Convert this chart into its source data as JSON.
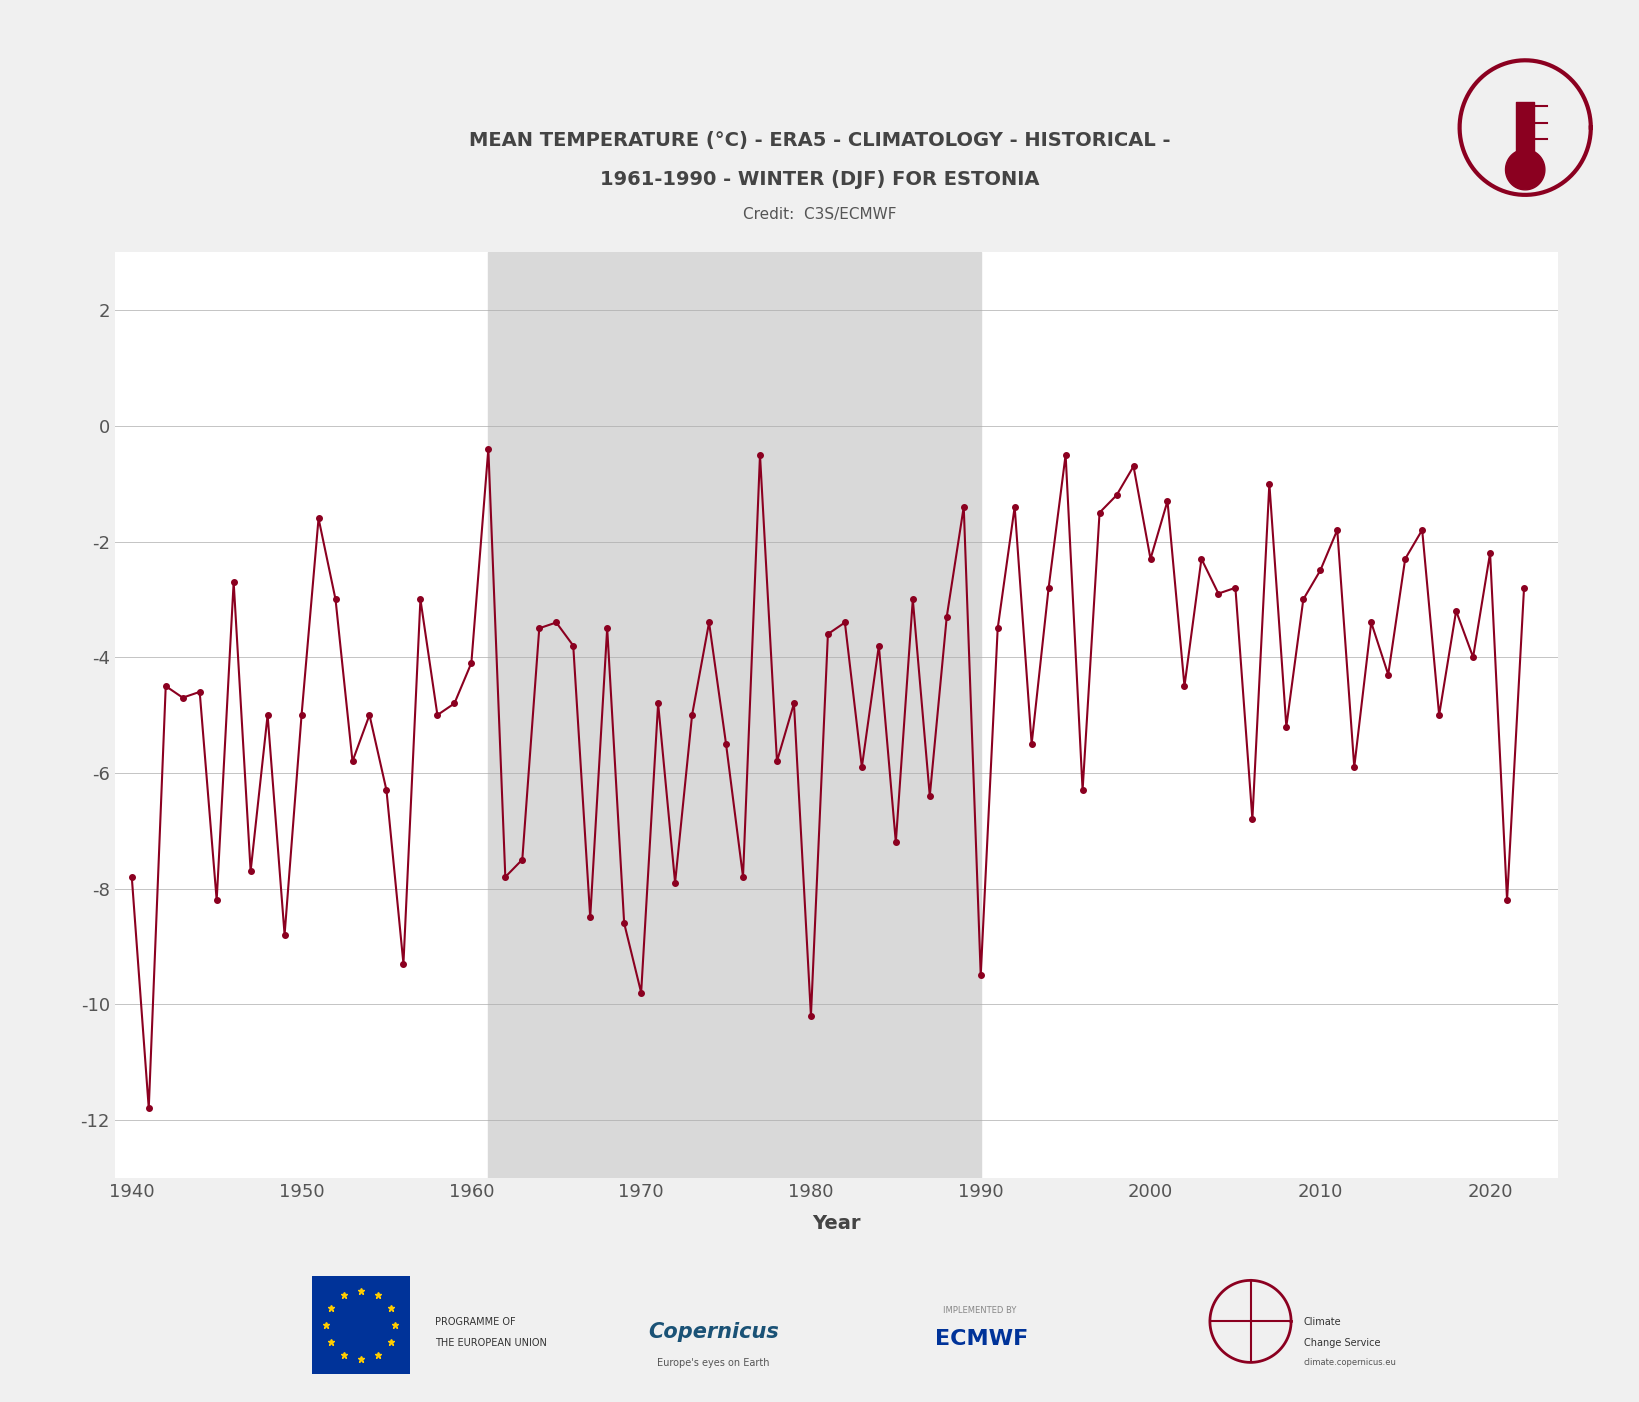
{
  "title_line1": "MEAN TEMPERATURE (°C) - ERA5 - CLIMATOLOGY - HISTORICAL -",
  "title_line2": "1961-1990 - WINTER (DJF) FOR ESTONIA",
  "credit": "Credit:  C3S/ECMWF",
  "xlabel": "Year",
  "background_color": "#f0f0f0",
  "plot_bg_color": "#ffffff",
  "line_color": "#8B0020",
  "marker_color": "#8B0020",
  "shading_color": "#d9d9d9",
  "shading_start": 1961,
  "shading_end": 1990,
  "ylim": [
    -13,
    3
  ],
  "xlim": [
    1939,
    2024
  ],
  "yticks": [
    2,
    0,
    -2,
    -4,
    -6,
    -8,
    -10,
    -12
  ],
  "xticks": [
    1940,
    1950,
    1960,
    1970,
    1980,
    1990,
    2000,
    2010,
    2020
  ],
  "years": [
    1940,
    1941,
    1942,
    1943,
    1944,
    1945,
    1946,
    1947,
    1948,
    1949,
    1950,
    1951,
    1952,
    1953,
    1954,
    1955,
    1956,
    1957,
    1958,
    1959,
    1960,
    1961,
    1962,
    1963,
    1964,
    1965,
    1966,
    1967,
    1968,
    1969,
    1970,
    1971,
    1972,
    1973,
    1974,
    1975,
    1976,
    1977,
    1978,
    1979,
    1980,
    1981,
    1982,
    1983,
    1984,
    1985,
    1986,
    1987,
    1988,
    1989,
    1990,
    1991,
    1992,
    1993,
    1994,
    1995,
    1996,
    1997,
    1998,
    1999,
    2000,
    2001,
    2002,
    2003,
    2004,
    2005,
    2006,
    2007,
    2008,
    2009,
    2010,
    2011,
    2012,
    2013,
    2014,
    2015,
    2016,
    2017,
    2018,
    2019,
    2020,
    2021,
    2022
  ],
  "temperatures": [
    -7.8,
    -11.8,
    -4.5,
    -4.7,
    -4.6,
    -8.2,
    -2.7,
    -7.7,
    -5.0,
    -8.8,
    -5.0,
    -1.6,
    -3.0,
    -5.8,
    -5.0,
    -6.3,
    -9.3,
    -3.0,
    -5.0,
    -4.8,
    -4.1,
    -0.4,
    -7.8,
    -7.5,
    -3.5,
    -3.4,
    -3.8,
    -8.5,
    -3.5,
    -8.6,
    -9.8,
    -4.8,
    -7.9,
    -5.0,
    -3.4,
    -5.5,
    -7.8,
    -0.5,
    -5.8,
    -4.8,
    -10.2,
    -3.6,
    -3.4,
    -5.9,
    -3.8,
    -7.2,
    -3.0,
    -6.4,
    -3.3,
    -1.4,
    -9.5,
    -3.5,
    -1.4,
    -5.5,
    -2.8,
    -0.5,
    -6.3,
    -1.5,
    -1.2,
    -0.7,
    -2.3,
    -1.3,
    -4.5,
    -2.3,
    -2.9,
    -2.8,
    -6.8,
    -1.0,
    -5.2,
    -3.0,
    -2.5,
    -1.8,
    -5.9,
    -3.4,
    -4.3,
    -2.3,
    -1.8,
    -5.0,
    -3.2,
    -4.0,
    -2.2,
    -8.2,
    -2.8
  ]
}
